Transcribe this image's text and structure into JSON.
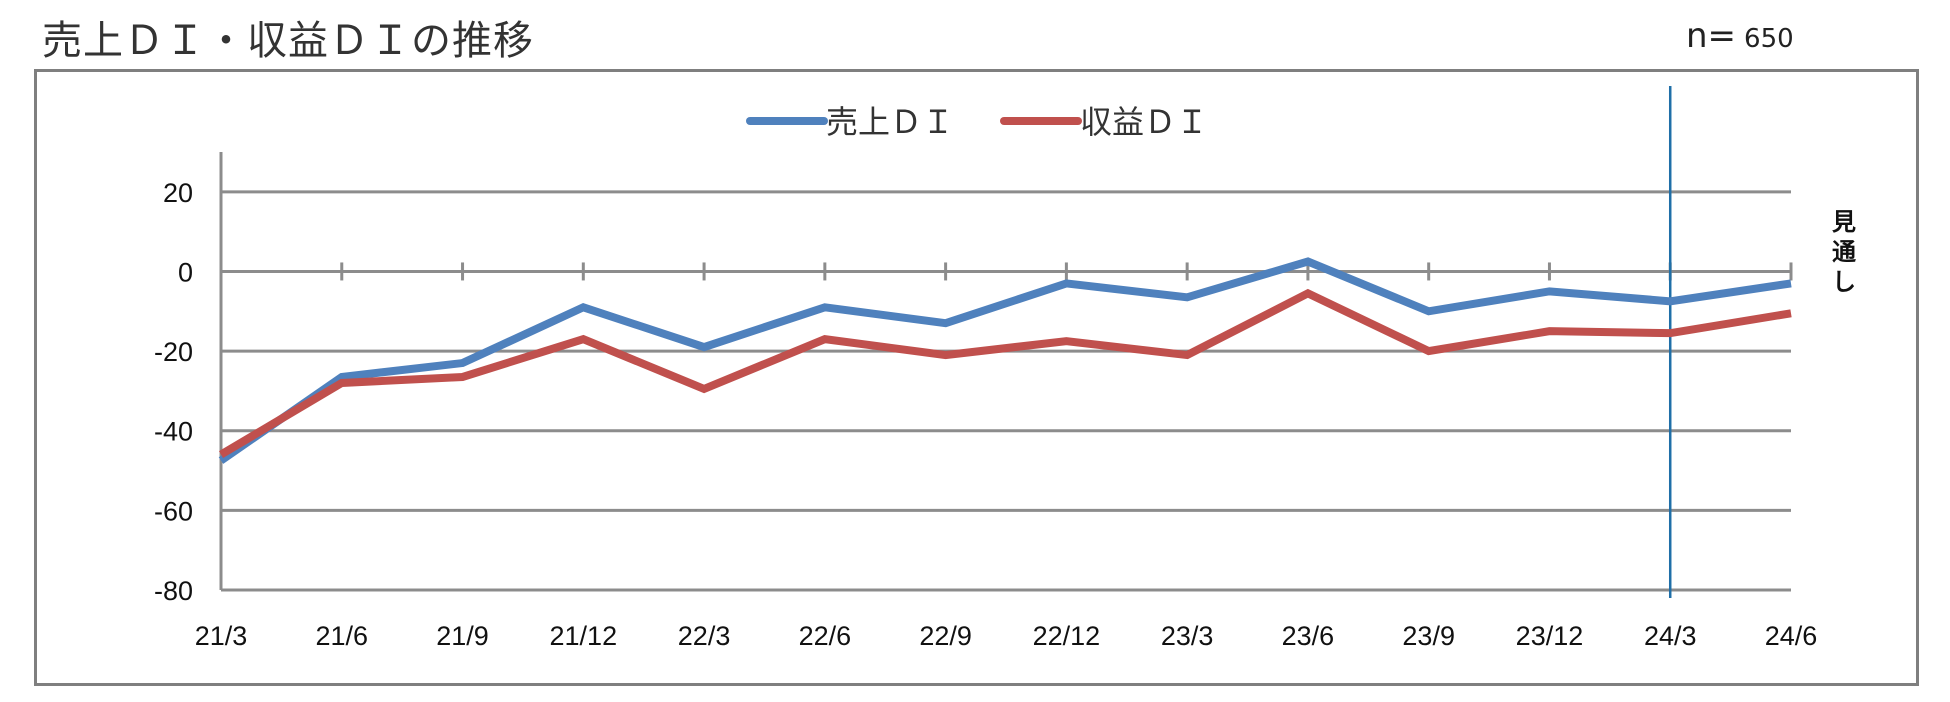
{
  "header": {
    "title": "売上ＤＩ・収益ＤＩの推移",
    "n_label": "n=",
    "n_value": "650"
  },
  "chart_data": {
    "type": "line",
    "title": "売上ＤＩ・収益ＤＩの推移",
    "categories": [
      "21/3",
      "21/6",
      "21/9",
      "21/12",
      "22/3",
      "22/6",
      "22/9",
      "22/12",
      "23/3",
      "23/6",
      "23/9",
      "23/12",
      "24/3",
      "24/6"
    ],
    "series": [
      {
        "name": "売上ＤＩ",
        "color": "#4f81bd",
        "values": [
          -47.5,
          -26.5,
          -23,
          -9,
          -19,
          -9,
          -13,
          -3,
          -6.5,
          2.5,
          -10,
          -5,
          -7.5,
          -3
        ]
      },
      {
        "name": "収益ＤＩ",
        "color": "#c0504d",
        "values": [
          -46,
          -28,
          -26.5,
          -17,
          -29.5,
          -17,
          -21,
          -17.5,
          -21,
          -5.5,
          -20,
          -15,
          -15.5,
          -10.5
        ]
      }
    ],
    "ylim": [
      -80,
      30
    ],
    "yticks": [
      20,
      0,
      -20,
      -40,
      -60,
      -80
    ],
    "ytick_labels": [
      "20",
      "0",
      "-20",
      "-40",
      "-60",
      "-80"
    ],
    "grid": true,
    "legend_position": "top-center",
    "forecast_marker": {
      "category": "24/3",
      "label": "見通し",
      "color": "#1f6fa8"
    }
  }
}
